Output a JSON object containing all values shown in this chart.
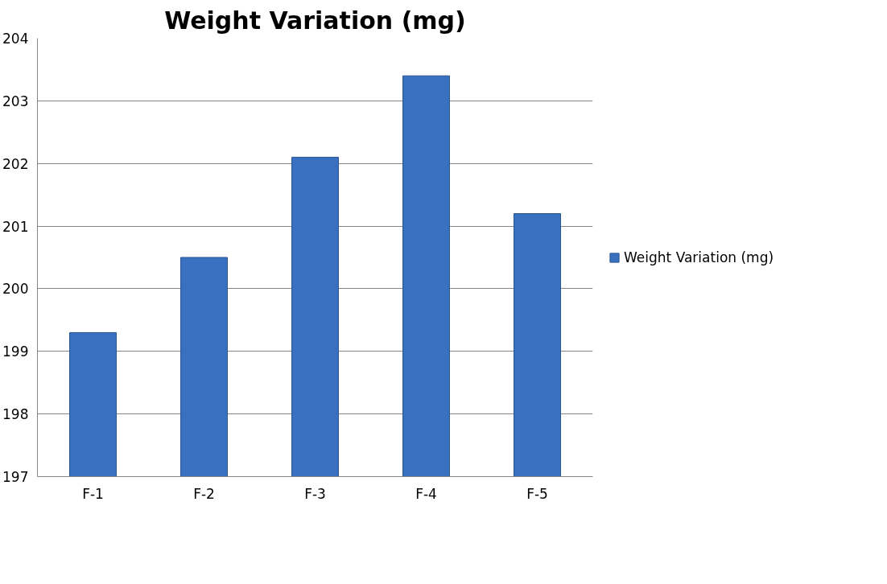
{
  "chart_data": {
    "type": "bar",
    "title": "Weight Variation (mg)",
    "categories": [
      "F-1",
      "F-2",
      "F-3",
      "F-4",
      "F-5"
    ],
    "series": [
      {
        "name": "Weight Variation (mg)",
        "color": "#3a70c0",
        "values": [
          199.3,
          200.5,
          202.1,
          203.4,
          201.2
        ]
      }
    ],
    "ylim": [
      197,
      204
    ],
    "yticks": [
      197,
      198,
      199,
      200,
      201,
      202,
      203,
      204
    ],
    "grid": "y",
    "legend": "right"
  }
}
